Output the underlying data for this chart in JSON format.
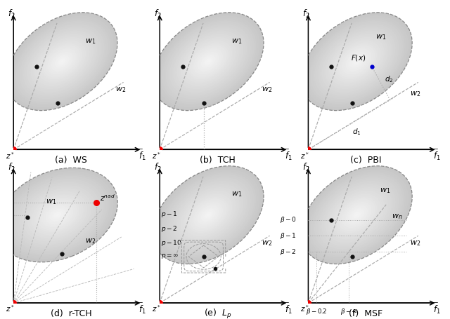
{
  "background": "#ffffff",
  "fc_light": "#e8e8e8",
  "fc_dark": "#b8b8b8",
  "ec": "#888888",
  "rc": "#ee0000",
  "bc": "#111111",
  "blc": "#0000cc",
  "figsize": [
    6.4,
    4.56
  ],
  "dpi": 100,
  "titles": [
    "(a)  WS",
    "(b)  TCH",
    "(c)  PBI",
    "(d)  r-TCH",
    "(e)  $L_p$",
    "(f)  MSF"
  ],
  "lp_labels": [
    "$p - 1$",
    "$p - 2$",
    "$p - 10$",
    "$p = \\infty$"
  ]
}
